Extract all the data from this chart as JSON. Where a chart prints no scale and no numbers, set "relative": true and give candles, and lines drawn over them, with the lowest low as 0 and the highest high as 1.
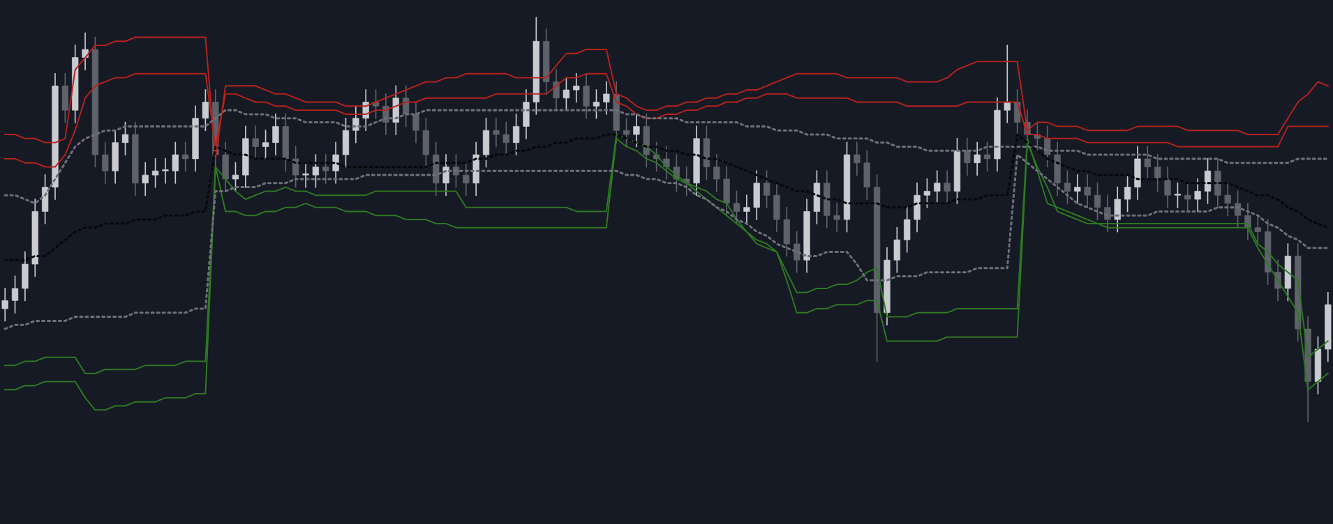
{
  "chart_data": {
    "type": "candlestick",
    "relative": true,
    "categories": [
      null,
      null,
      null,
      null,
      null,
      null,
      null,
      null,
      null,
      null,
      null,
      null,
      null,
      null,
      null,
      null,
      null,
      null,
      null,
      null,
      null,
      null,
      null,
      null,
      null,
      null,
      null,
      null,
      null,
      null,
      null,
      null,
      null,
      null,
      null,
      null,
      null,
      null,
      null,
      null,
      null,
      null,
      null,
      null,
      null,
      null,
      null,
      null,
      null,
      null,
      null,
      null,
      null,
      null,
      null,
      null,
      null,
      null,
      null,
      null,
      null,
      null,
      null,
      null,
      null,
      null,
      null,
      null,
      null,
      null,
      null,
      null,
      null,
      null,
      null,
      null,
      null,
      null,
      null,
      null,
      null,
      null,
      null,
      null,
      null,
      null,
      null,
      null,
      null,
      null,
      null,
      null,
      null,
      null,
      null,
      null,
      null,
      null,
      null,
      null,
      null,
      null,
      null,
      null,
      null,
      null,
      null,
      null,
      null,
      null,
      null,
      null,
      null,
      null,
      null,
      null,
      null,
      null,
      null,
      null,
      null,
      null,
      null,
      null,
      null,
      null,
      null,
      null,
      null,
      null,
      null,
      null,
      null
    ],
    "ohlc": [
      [
        0.28,
        0.33,
        0.25,
        0.3
      ],
      [
        0.3,
        0.36,
        0.27,
        0.33
      ],
      [
        0.33,
        0.42,
        0.3,
        0.39
      ],
      [
        0.39,
        0.55,
        0.36,
        0.52
      ],
      [
        0.52,
        0.61,
        0.49,
        0.58
      ],
      [
        0.58,
        0.86,
        0.55,
        0.83
      ],
      [
        0.83,
        0.86,
        0.74,
        0.77
      ],
      [
        0.77,
        0.93,
        0.74,
        0.9
      ],
      [
        0.9,
        0.96,
        0.87,
        0.92
      ],
      [
        0.92,
        0.95,
        0.63,
        0.66
      ],
      [
        0.66,
        0.69,
        0.59,
        0.62
      ],
      [
        0.62,
        0.72,
        0.59,
        0.69
      ],
      [
        0.69,
        0.74,
        0.66,
        0.71
      ],
      [
        0.71,
        0.74,
        0.56,
        0.59
      ],
      [
        0.59,
        0.64,
        0.56,
        0.61
      ],
      [
        0.61,
        0.65,
        0.58,
        0.62
      ],
      [
        0.62,
        0.65,
        0.59,
        0.62
      ],
      [
        0.62,
        0.69,
        0.59,
        0.66
      ],
      [
        0.66,
        0.69,
        0.62,
        0.65
      ],
      [
        0.65,
        0.78,
        0.62,
        0.75
      ],
      [
        0.75,
        0.82,
        0.72,
        0.79
      ],
      [
        0.79,
        0.82,
        0.63,
        0.66
      ],
      [
        0.66,
        0.69,
        0.57,
        0.6
      ],
      [
        0.6,
        0.64,
        0.57,
        0.61
      ],
      [
        0.61,
        0.73,
        0.58,
        0.7
      ],
      [
        0.7,
        0.73,
        0.65,
        0.68
      ],
      [
        0.68,
        0.72,
        0.65,
        0.69
      ],
      [
        0.69,
        0.76,
        0.66,
        0.73
      ],
      [
        0.73,
        0.76,
        0.62,
        0.65
      ],
      [
        0.65,
        0.68,
        0.58,
        0.61
      ],
      [
        0.61,
        0.64,
        0.58,
        0.61
      ],
      [
        0.61,
        0.66,
        0.58,
        0.63
      ],
      [
        0.63,
        0.66,
        0.59,
        0.62
      ],
      [
        0.62,
        0.69,
        0.59,
        0.66
      ],
      [
        0.66,
        0.75,
        0.63,
        0.72
      ],
      [
        0.72,
        0.78,
        0.69,
        0.75
      ],
      [
        0.75,
        0.82,
        0.72,
        0.79
      ],
      [
        0.79,
        0.82,
        0.75,
        0.78
      ],
      [
        0.78,
        0.81,
        0.71,
        0.74
      ],
      [
        0.74,
        0.83,
        0.71,
        0.8
      ],
      [
        0.8,
        0.83,
        0.73,
        0.76
      ],
      [
        0.76,
        0.79,
        0.69,
        0.72
      ],
      [
        0.72,
        0.75,
        0.63,
        0.66
      ],
      [
        0.66,
        0.69,
        0.56,
        0.59
      ],
      [
        0.59,
        0.66,
        0.56,
        0.63
      ],
      [
        0.63,
        0.66,
        0.58,
        0.61
      ],
      [
        0.61,
        0.64,
        0.56,
        0.59
      ],
      [
        0.59,
        0.69,
        0.56,
        0.66
      ],
      [
        0.66,
        0.75,
        0.63,
        0.72
      ],
      [
        0.72,
        0.75,
        0.68,
        0.71
      ],
      [
        0.71,
        0.74,
        0.66,
        0.69
      ],
      [
        0.69,
        0.76,
        0.66,
        0.73
      ],
      [
        0.73,
        0.82,
        0.7,
        0.79
      ],
      [
        0.79,
        1.0,
        0.76,
        0.94
      ],
      [
        0.94,
        0.97,
        0.81,
        0.84
      ],
      [
        0.84,
        0.87,
        0.77,
        0.8
      ],
      [
        0.8,
        0.85,
        0.77,
        0.82
      ],
      [
        0.82,
        0.86,
        0.79,
        0.83
      ],
      [
        0.83,
        0.86,
        0.75,
        0.78
      ],
      [
        0.78,
        0.82,
        0.75,
        0.79
      ],
      [
        0.79,
        0.84,
        0.76,
        0.81
      ],
      [
        0.81,
        0.84,
        0.69,
        0.72
      ],
      [
        0.72,
        0.75,
        0.68,
        0.71
      ],
      [
        0.71,
        0.76,
        0.68,
        0.73
      ],
      [
        0.73,
        0.76,
        0.63,
        0.66
      ],
      [
        0.66,
        0.69,
        0.62,
        0.65
      ],
      [
        0.65,
        0.68,
        0.6,
        0.63
      ],
      [
        0.63,
        0.66,
        0.57,
        0.6
      ],
      [
        0.6,
        0.63,
        0.56,
        0.59
      ],
      [
        0.59,
        0.73,
        0.56,
        0.7
      ],
      [
        0.7,
        0.73,
        0.6,
        0.63
      ],
      [
        0.63,
        0.66,
        0.57,
        0.6
      ],
      [
        0.6,
        0.63,
        0.51,
        0.54
      ],
      [
        0.54,
        0.57,
        0.49,
        0.52
      ],
      [
        0.52,
        0.56,
        0.49,
        0.53
      ],
      [
        0.53,
        0.62,
        0.5,
        0.59
      ],
      [
        0.59,
        0.62,
        0.53,
        0.56
      ],
      [
        0.56,
        0.59,
        0.47,
        0.5
      ],
      [
        0.5,
        0.53,
        0.41,
        0.44
      ],
      [
        0.44,
        0.47,
        0.37,
        0.4
      ],
      [
        0.4,
        0.55,
        0.37,
        0.52
      ],
      [
        0.52,
        0.62,
        0.49,
        0.59
      ],
      [
        0.59,
        0.62,
        0.48,
        0.51
      ],
      [
        0.51,
        0.54,
        0.47,
        0.5
      ],
      [
        0.5,
        0.69,
        0.47,
        0.66
      ],
      [
        0.66,
        0.69,
        0.61,
        0.64
      ],
      [
        0.64,
        0.67,
        0.55,
        0.58
      ],
      [
        0.58,
        0.61,
        0.15,
        0.27
      ],
      [
        0.27,
        0.43,
        0.24,
        0.4
      ],
      [
        0.4,
        0.48,
        0.37,
        0.45
      ],
      [
        0.45,
        0.53,
        0.42,
        0.5
      ],
      [
        0.5,
        0.59,
        0.47,
        0.56
      ],
      [
        0.56,
        0.6,
        0.53,
        0.57
      ],
      [
        0.57,
        0.62,
        0.54,
        0.59
      ],
      [
        0.59,
        0.62,
        0.54,
        0.57
      ],
      [
        0.57,
        0.7,
        0.54,
        0.67
      ],
      [
        0.67,
        0.7,
        0.61,
        0.64
      ],
      [
        0.64,
        0.69,
        0.61,
        0.66
      ],
      [
        0.66,
        0.69,
        0.62,
        0.65
      ],
      [
        0.65,
        0.8,
        0.62,
        0.77
      ],
      [
        0.77,
        0.93,
        0.74,
        0.79
      ],
      [
        0.79,
        0.82,
        0.71,
        0.74
      ],
      [
        0.74,
        0.77,
        0.68,
        0.71
      ],
      [
        0.71,
        0.74,
        0.67,
        0.7
      ],
      [
        0.7,
        0.73,
        0.63,
        0.66
      ],
      [
        0.66,
        0.69,
        0.56,
        0.59
      ],
      [
        0.59,
        0.62,
        0.54,
        0.57
      ],
      [
        0.57,
        0.61,
        0.54,
        0.58
      ],
      [
        0.58,
        0.61,
        0.53,
        0.56
      ],
      [
        0.56,
        0.59,
        0.5,
        0.53
      ],
      [
        0.53,
        0.56,
        0.47,
        0.5
      ],
      [
        0.5,
        0.58,
        0.47,
        0.55
      ],
      [
        0.55,
        0.61,
        0.52,
        0.58
      ],
      [
        0.58,
        0.68,
        0.55,
        0.65
      ],
      [
        0.65,
        0.68,
        0.6,
        0.63
      ],
      [
        0.63,
        0.66,
        0.57,
        0.6
      ],
      [
        0.6,
        0.63,
        0.53,
        0.56
      ],
      [
        0.56,
        0.59,
        0.53,
        0.56
      ],
      [
        0.56,
        0.59,
        0.52,
        0.55
      ],
      [
        0.55,
        0.6,
        0.52,
        0.57
      ],
      [
        0.57,
        0.65,
        0.54,
        0.62
      ],
      [
        0.62,
        0.65,
        0.53,
        0.56
      ],
      [
        0.56,
        0.59,
        0.51,
        0.54
      ],
      [
        0.54,
        0.57,
        0.48,
        0.51
      ],
      [
        0.51,
        0.54,
        0.45,
        0.48
      ],
      [
        0.48,
        0.51,
        0.44,
        0.47
      ],
      [
        0.47,
        0.5,
        0.34,
        0.37
      ],
      [
        0.37,
        0.4,
        0.3,
        0.33
      ],
      [
        0.33,
        0.44,
        0.3,
        0.41
      ],
      [
        0.41,
        0.44,
        0.2,
        0.23
      ],
      [
        0.23,
        0.26,
        0.0,
        0.1
      ],
      [
        0.1,
        0.21,
        0.07,
        0.18
      ],
      [
        0.18,
        0.32,
        0.15,
        0.29
      ]
    ],
    "series": [
      {
        "type": "line",
        "color": "#b8221c",
        "line_style": "solid",
        "values": [
          0.71,
          0.71,
          0.7,
          0.7,
          0.69,
          0.69,
          0.7,
          0.87,
          0.9,
          0.93,
          0.93,
          0.94,
          0.94,
          0.95,
          0.95,
          0.95,
          0.95,
          0.95,
          0.95,
          0.95,
          0.95,
          0.65,
          0.83,
          0.83,
          0.83,
          0.83,
          0.82,
          0.81,
          0.81,
          0.8,
          0.79,
          0.79,
          0.79,
          0.79,
          0.78,
          0.78,
          0.78,
          0.79,
          0.8,
          0.81,
          0.82,
          0.83,
          0.84,
          0.84,
          0.85,
          0.85,
          0.86,
          0.86,
          0.86,
          0.86,
          0.86,
          0.85,
          0.85,
          0.85,
          0.85,
          0.88,
          0.91,
          0.91,
          0.92,
          0.92,
          0.92,
          0.81,
          0.8,
          0.78,
          0.77,
          0.77,
          0.78,
          0.78,
          0.79,
          0.79,
          0.8,
          0.8,
          0.81,
          0.81,
          0.82,
          0.82,
          0.83,
          0.84,
          0.85,
          0.86,
          0.86,
          0.86,
          0.86,
          0.86,
          0.85,
          0.85,
          0.85,
          0.85,
          0.85,
          0.85,
          0.84,
          0.84,
          0.84,
          0.84,
          0.85,
          0.87,
          0.88,
          0.89,
          0.89,
          0.89,
          0.89,
          0.89,
          0.72,
          0.74,
          0.74,
          0.73,
          0.73,
          0.73,
          0.72,
          0.72,
          0.72,
          0.72,
          0.72,
          0.73,
          0.73,
          0.73,
          0.73,
          0.73,
          0.72,
          0.72,
          0.72,
          0.72,
          0.72,
          0.72,
          0.71,
          0.71,
          0.71,
          0.71,
          0.75,
          0.79,
          0.81,
          0.84,
          0.83
        ]
      },
      {
        "type": "line",
        "color": "#b8221c",
        "line_style": "solid",
        "values": [
          0.65,
          0.65,
          0.64,
          0.64,
          0.63,
          0.63,
          0.66,
          0.72,
          0.8,
          0.83,
          0.84,
          0.85,
          0.85,
          0.86,
          0.86,
          0.86,
          0.86,
          0.86,
          0.86,
          0.86,
          0.86,
          0.68,
          0.81,
          0.81,
          0.8,
          0.79,
          0.79,
          0.78,
          0.78,
          0.77,
          0.77,
          0.77,
          0.77,
          0.77,
          0.76,
          0.76,
          0.76,
          0.77,
          0.77,
          0.78,
          0.79,
          0.79,
          0.8,
          0.8,
          0.8,
          0.8,
          0.8,
          0.8,
          0.8,
          0.81,
          0.81,
          0.81,
          0.81,
          0.81,
          0.81,
          0.83,
          0.85,
          0.85,
          0.86,
          0.86,
          0.86,
          0.79,
          0.78,
          0.76,
          0.75,
          0.75,
          0.76,
          0.76,
          0.77,
          0.77,
          0.78,
          0.78,
          0.79,
          0.79,
          0.8,
          0.8,
          0.81,
          0.81,
          0.81,
          0.8,
          0.8,
          0.8,
          0.8,
          0.8,
          0.8,
          0.79,
          0.79,
          0.79,
          0.79,
          0.79,
          0.78,
          0.78,
          0.78,
          0.78,
          0.78,
          0.78,
          0.79,
          0.79,
          0.79,
          0.79,
          0.79,
          0.79,
          0.71,
          0.71,
          0.7,
          0.7,
          0.7,
          0.7,
          0.69,
          0.69,
          0.69,
          0.69,
          0.69,
          0.69,
          0.69,
          0.69,
          0.69,
          0.68,
          0.68,
          0.68,
          0.68,
          0.68,
          0.68,
          0.68,
          0.68,
          0.68,
          0.68,
          0.68,
          0.73,
          0.73,
          0.73,
          0.73,
          0.73
        ]
      },
      {
        "type": "line",
        "color": "#2e7a22",
        "line_style": "solid",
        "values": [
          0.14,
          0.14,
          0.15,
          0.15,
          0.16,
          0.16,
          0.16,
          0.16,
          0.12,
          0.12,
          0.13,
          0.13,
          0.13,
          0.13,
          0.14,
          0.14,
          0.14,
          0.14,
          0.15,
          0.15,
          0.15,
          0.63,
          0.6,
          0.57,
          0.55,
          0.56,
          0.57,
          0.57,
          0.58,
          0.57,
          0.57,
          0.56,
          0.56,
          0.56,
          0.56,
          0.56,
          0.56,
          0.57,
          0.57,
          0.57,
          0.57,
          0.57,
          0.57,
          0.57,
          0.57,
          0.57,
          0.53,
          0.53,
          0.53,
          0.53,
          0.53,
          0.53,
          0.53,
          0.53,
          0.53,
          0.53,
          0.53,
          0.52,
          0.52,
          0.52,
          0.52,
          0.71,
          0.7,
          0.69,
          0.68,
          0.66,
          0.63,
          0.61,
          0.59,
          0.58,
          0.57,
          0.55,
          0.54,
          0.5,
          0.47,
          0.44,
          0.43,
          0.42,
          0.37,
          0.32,
          0.32,
          0.33,
          0.33,
          0.34,
          0.34,
          0.35,
          0.37,
          0.38,
          0.26,
          0.26,
          0.26,
          0.27,
          0.27,
          0.27,
          0.27,
          0.28,
          0.28,
          0.28,
          0.28,
          0.28,
          0.28,
          0.28,
          0.7,
          0.62,
          0.54,
          0.53,
          0.52,
          0.51,
          0.5,
          0.49,
          0.49,
          0.49,
          0.49,
          0.49,
          0.49,
          0.49,
          0.49,
          0.49,
          0.49,
          0.49,
          0.49,
          0.49,
          0.49,
          0.49,
          0.49,
          0.44,
          0.42,
          0.39,
          0.37,
          0.35,
          0.16,
          0.18,
          0.2
        ]
      },
      {
        "type": "line",
        "color": "#2e7a22",
        "line_style": "solid",
        "values": [
          0.08,
          0.08,
          0.09,
          0.09,
          0.1,
          0.1,
          0.1,
          0.1,
          0.06,
          0.03,
          0.03,
          0.04,
          0.04,
          0.05,
          0.05,
          0.05,
          0.06,
          0.06,
          0.06,
          0.07,
          0.07,
          0.63,
          0.52,
          0.52,
          0.51,
          0.51,
          0.52,
          0.52,
          0.53,
          0.53,
          0.54,
          0.53,
          0.53,
          0.53,
          0.52,
          0.52,
          0.52,
          0.51,
          0.51,
          0.51,
          0.5,
          0.5,
          0.5,
          0.49,
          0.49,
          0.48,
          0.48,
          0.48,
          0.48,
          0.48,
          0.48,
          0.48,
          0.48,
          0.48,
          0.48,
          0.48,
          0.48,
          0.48,
          0.48,
          0.48,
          0.48,
          0.7,
          0.68,
          0.67,
          0.65,
          0.64,
          0.62,
          0.6,
          0.59,
          0.57,
          0.55,
          0.53,
          0.51,
          0.49,
          0.47,
          0.45,
          0.44,
          0.42,
          0.35,
          0.27,
          0.27,
          0.28,
          0.28,
          0.29,
          0.29,
          0.29,
          0.3,
          0.3,
          0.2,
          0.2,
          0.2,
          0.2,
          0.2,
          0.2,
          0.21,
          0.21,
          0.21,
          0.21,
          0.21,
          0.21,
          0.21,
          0.21,
          0.69,
          0.63,
          0.58,
          0.52,
          0.51,
          0.5,
          0.49,
          0.49,
          0.48,
          0.48,
          0.48,
          0.48,
          0.48,
          0.48,
          0.48,
          0.48,
          0.48,
          0.48,
          0.48,
          0.48,
          0.48,
          0.48,
          0.48,
          0.43,
          0.39,
          0.35,
          0.31,
          0.27,
          0.08,
          0.1,
          0.12
        ]
      },
      {
        "type": "line",
        "color": "#6e7079",
        "line_style": "dotted",
        "values": [
          0.56,
          0.56,
          0.55,
          0.54,
          0.56,
          0.6,
          0.64,
          0.68,
          0.7,
          0.71,
          0.72,
          0.72,
          0.73,
          0.73,
          0.73,
          0.73,
          0.73,
          0.73,
          0.73,
          0.73,
          0.73,
          0.75,
          0.77,
          0.77,
          0.76,
          0.76,
          0.76,
          0.75,
          0.75,
          0.75,
          0.74,
          0.74,
          0.74,
          0.74,
          0.73,
          0.73,
          0.73,
          0.74,
          0.75,
          0.75,
          0.76,
          0.76,
          0.77,
          0.77,
          0.77,
          0.77,
          0.77,
          0.77,
          0.77,
          0.77,
          0.77,
          0.77,
          0.77,
          0.77,
          0.77,
          0.77,
          0.77,
          0.77,
          0.77,
          0.77,
          0.77,
          0.77,
          0.76,
          0.76,
          0.75,
          0.75,
          0.75,
          0.75,
          0.74,
          0.74,
          0.74,
          0.74,
          0.74,
          0.74,
          0.73,
          0.73,
          0.73,
          0.72,
          0.72,
          0.72,
          0.71,
          0.71,
          0.71,
          0.7,
          0.7,
          0.7,
          0.7,
          0.69,
          0.69,
          0.68,
          0.68,
          0.68,
          0.67,
          0.67,
          0.67,
          0.67,
          0.67,
          0.67,
          0.68,
          0.68,
          0.68,
          0.68,
          0.68,
          0.68,
          0.67,
          0.67,
          0.67,
          0.67,
          0.66,
          0.66,
          0.66,
          0.66,
          0.66,
          0.66,
          0.66,
          0.65,
          0.65,
          0.65,
          0.65,
          0.65,
          0.65,
          0.65,
          0.64,
          0.64,
          0.64,
          0.64,
          0.64,
          0.64,
          0.64,
          0.65,
          0.65,
          0.65,
          0.65
        ]
      },
      {
        "type": "line",
        "color": "#6e7079",
        "line_style": "dotted",
        "values": [
          0.23,
          0.24,
          0.24,
          0.25,
          0.25,
          0.25,
          0.25,
          0.26,
          0.26,
          0.26,
          0.26,
          0.26,
          0.26,
          0.27,
          0.27,
          0.27,
          0.27,
          0.27,
          0.27,
          0.28,
          0.28,
          0.57,
          0.57,
          0.58,
          0.58,
          0.58,
          0.59,
          0.59,
          0.59,
          0.6,
          0.6,
          0.6,
          0.6,
          0.6,
          0.6,
          0.6,
          0.61,
          0.61,
          0.61,
          0.61,
          0.61,
          0.61,
          0.61,
          0.61,
          0.62,
          0.62,
          0.62,
          0.62,
          0.62,
          0.62,
          0.62,
          0.62,
          0.62,
          0.62,
          0.62,
          0.62,
          0.62,
          0.62,
          0.62,
          0.62,
          0.62,
          0.62,
          0.61,
          0.61,
          0.6,
          0.6,
          0.59,
          0.59,
          0.58,
          0.56,
          0.55,
          0.53,
          0.52,
          0.5,
          0.49,
          0.47,
          0.46,
          0.44,
          0.43,
          0.42,
          0.41,
          0.41,
          0.42,
          0.42,
          0.42,
          0.39,
          0.35,
          0.35,
          0.35,
          0.36,
          0.36,
          0.36,
          0.37,
          0.37,
          0.37,
          0.37,
          0.37,
          0.38,
          0.38,
          0.38,
          0.38,
          0.66,
          0.64,
          0.62,
          0.6,
          0.58,
          0.56,
          0.54,
          0.53,
          0.52,
          0.51,
          0.51,
          0.51,
          0.51,
          0.51,
          0.52,
          0.52,
          0.52,
          0.52,
          0.52,
          0.52,
          0.53,
          0.53,
          0.53,
          0.52,
          0.51,
          0.49,
          0.48,
          0.46,
          0.45,
          0.43,
          0.43,
          0.43
        ]
      },
      {
        "type": "line",
        "color": "#07080c",
        "line_style": "dotted",
        "values": [
          0.4,
          0.4,
          0.4,
          0.41,
          0.41,
          0.43,
          0.45,
          0.47,
          0.48,
          0.48,
          0.49,
          0.49,
          0.49,
          0.5,
          0.5,
          0.5,
          0.51,
          0.51,
          0.51,
          0.52,
          0.52,
          0.68,
          0.67,
          0.66,
          0.66,
          0.65,
          0.65,
          0.65,
          0.65,
          0.64,
          0.64,
          0.64,
          0.64,
          0.64,
          0.63,
          0.63,
          0.63,
          0.63,
          0.63,
          0.63,
          0.63,
          0.63,
          0.63,
          0.64,
          0.64,
          0.64,
          0.64,
          0.65,
          0.65,
          0.66,
          0.66,
          0.67,
          0.67,
          0.68,
          0.68,
          0.69,
          0.69,
          0.7,
          0.7,
          0.7,
          0.71,
          0.71,
          0.7,
          0.69,
          0.68,
          0.68,
          0.67,
          0.67,
          0.66,
          0.66,
          0.65,
          0.65,
          0.64,
          0.63,
          0.62,
          0.61,
          0.6,
          0.59,
          0.58,
          0.57,
          0.57,
          0.56,
          0.55,
          0.55,
          0.54,
          0.54,
          0.54,
          0.54,
          0.53,
          0.53,
          0.53,
          0.54,
          0.54,
          0.54,
          0.54,
          0.55,
          0.55,
          0.55,
          0.56,
          0.56,
          0.56,
          0.71,
          0.69,
          0.67,
          0.65,
          0.64,
          0.63,
          0.62,
          0.62,
          0.61,
          0.61,
          0.61,
          0.61,
          0.6,
          0.6,
          0.6,
          0.6,
          0.6,
          0.59,
          0.59,
          0.59,
          0.59,
          0.59,
          0.58,
          0.57,
          0.56,
          0.56,
          0.55,
          0.53,
          0.52,
          0.5,
          0.49,
          0.48
        ]
      }
    ]
  }
}
